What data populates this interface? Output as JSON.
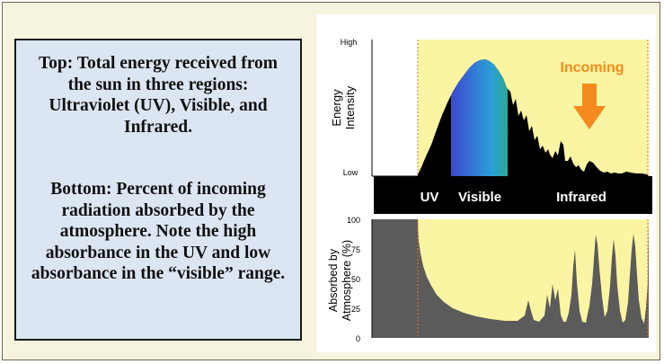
{
  "text_box": {
    "top_description": "Top: Total energy received from the sun in three regions: Ultraviolet (UV), Visible, and Infrared.",
    "bottom_description": "Bottom: Percent of incoming radiation absorbed by the atmosphere.  Note the high absorbance in the UV and low absorbance in the “visible” range."
  },
  "top_chart": {
    "y_title_line1": "Energy",
    "y_title_line2": "Intensity",
    "y_high": "High",
    "y_low": "Low",
    "incoming_label": "Incoming",
    "colors": {
      "background": "#fbf4a2",
      "spectrum": "#000000",
      "arrow": "#f58a1e",
      "incoming": "#f58a1e"
    }
  },
  "band": {
    "uv": "UV",
    "visible": "Visible",
    "infrared": "Infrared"
  },
  "bottom_chart": {
    "y_title_line1": "Absorbed by",
    "y_title_line2": "Atmosphere (%)",
    "ticks": [
      "100",
      "75",
      "50",
      "25",
      "0"
    ],
    "colors": {
      "absorbed": "#5b5b5b",
      "background": "#fbf4a2"
    }
  }
}
